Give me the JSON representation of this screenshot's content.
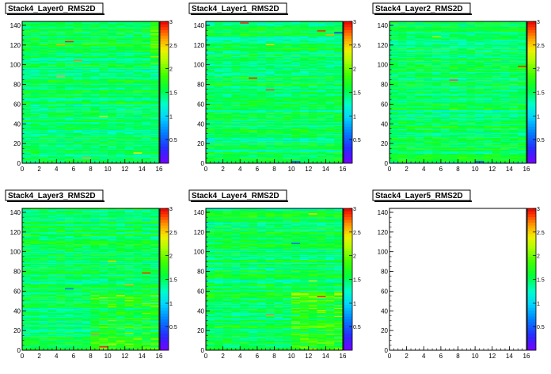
{
  "chart_data": [
    {
      "type": "heatmap",
      "title": "Stack4_Layer0_RMS2D",
      "x_ticks": [
        "0",
        "2",
        "4",
        "6",
        "8",
        "10",
        "12",
        "14",
        "16"
      ],
      "y_ticks": [
        "0",
        "20",
        "40",
        "60",
        "80",
        "100",
        "120",
        "140"
      ],
      "z_ticks": [
        "0.5",
        "1",
        "1.5",
        "2",
        "2.5",
        "3"
      ],
      "xlim": [
        0,
        16
      ],
      "ylim": [
        0,
        144
      ],
      "zlim": [
        0,
        3
      ],
      "typical_value": 1.5,
      "empty": false,
      "hot_cells": [
        {
          "x": 5,
          "y": 123,
          "z": 2.9
        },
        {
          "x": 4,
          "y": 120,
          "z": 2.6
        },
        {
          "x": 6,
          "y": 104,
          "z": 2.7
        },
        {
          "x": 4,
          "y": 88,
          "z": 2.6
        },
        {
          "x": 7,
          "y": 5,
          "z": 2.6
        },
        {
          "x": 13,
          "y": 10,
          "z": 2.4
        },
        {
          "x": 9,
          "y": 47,
          "z": 2.3
        }
      ]
    },
    {
      "type": "heatmap",
      "title": "Stack4_Layer1_RMS2D",
      "x_ticks": [
        "0",
        "2",
        "4",
        "6",
        "8",
        "10",
        "12",
        "14",
        "16"
      ],
      "y_ticks": [
        "0",
        "20",
        "40",
        "60",
        "80",
        "100",
        "120",
        "140"
      ],
      "z_ticks": [
        "0.5",
        "1",
        "1.5",
        "2",
        "2.5",
        "3"
      ],
      "xlim": [
        0,
        16
      ],
      "ylim": [
        0,
        144
      ],
      "zlim": [
        0,
        3
      ],
      "typical_value": 1.5,
      "empty": false,
      "hot_cells": [
        {
          "x": 4,
          "y": 142,
          "z": 2.9
        },
        {
          "x": 13,
          "y": 134,
          "z": 2.9
        },
        {
          "x": 15,
          "y": 132,
          "z": 0.3
        },
        {
          "x": 7,
          "y": 120,
          "z": 2.5
        },
        {
          "x": 5,
          "y": 86,
          "z": 2.9
        },
        {
          "x": 7,
          "y": 74,
          "z": 2.8
        },
        {
          "x": 10,
          "y": 1,
          "z": 0.3
        },
        {
          "x": 14,
          "y": 130,
          "z": 2.6
        }
      ]
    },
    {
      "type": "heatmap",
      "title": "Stack4_Layer2_RMS2D",
      "x_ticks": [
        "0",
        "2",
        "4",
        "6",
        "8",
        "10",
        "12",
        "14",
        "16"
      ],
      "y_ticks": [
        "0",
        "20",
        "40",
        "60",
        "80",
        "100",
        "120",
        "140"
      ],
      "z_ticks": [
        "0.5",
        "1",
        "1.5",
        "2",
        "2.5",
        "3"
      ],
      "xlim": [
        0,
        16
      ],
      "ylim": [
        0,
        144
      ],
      "zlim": [
        0,
        3
      ],
      "typical_value": 1.5,
      "empty": false,
      "hot_cells": [
        {
          "x": 7,
          "y": 84,
          "z": 2.8
        },
        {
          "x": 15,
          "y": 98,
          "z": 2.9
        },
        {
          "x": 10,
          "y": 1,
          "z": 0.3
        },
        {
          "x": 5,
          "y": 128,
          "z": 2.2
        }
      ]
    },
    {
      "type": "heatmap",
      "title": "Stack4_Layer3_RMS2D",
      "x_ticks": [
        "0",
        "2",
        "4",
        "6",
        "8",
        "10",
        "12",
        "14",
        "16"
      ],
      "y_ticks": [
        "0",
        "20",
        "40",
        "60",
        "80",
        "100",
        "120",
        "140"
      ],
      "z_ticks": [
        "0.5",
        "1",
        "1.5",
        "2",
        "2.5",
        "3"
      ],
      "xlim": [
        0,
        16
      ],
      "ylim": [
        0,
        144
      ],
      "zlim": [
        0,
        3
      ],
      "typical_value": 1.5,
      "empty": false,
      "hot_cells": [
        {
          "x": 14,
          "y": 78,
          "z": 2.9
        },
        {
          "x": 9,
          "y": 3,
          "z": 2.9
        },
        {
          "x": 8,
          "y": 16,
          "z": 2.7
        },
        {
          "x": 5,
          "y": 62,
          "z": 0.6
        },
        {
          "x": 12,
          "y": 66,
          "z": 2.6
        },
        {
          "x": 10,
          "y": 90,
          "z": 2.5
        },
        {
          "x": 11,
          "y": 55,
          "z": 2.3
        }
      ]
    },
    {
      "type": "heatmap",
      "title": "Stack4_Layer4_RMS2D",
      "x_ticks": [
        "0",
        "2",
        "4",
        "6",
        "8",
        "10",
        "12",
        "14",
        "16"
      ],
      "y_ticks": [
        "0",
        "20",
        "40",
        "60",
        "80",
        "100",
        "120",
        "140"
      ],
      "z_ticks": [
        "0.5",
        "1",
        "1.5",
        "2",
        "2.5",
        "3"
      ],
      "xlim": [
        0,
        16
      ],
      "ylim": [
        0,
        144
      ],
      "zlim": [
        0,
        3
      ],
      "typical_value": 1.5,
      "empty": false,
      "hot_cells": [
        {
          "x": 13,
          "y": 54,
          "z": 2.9
        },
        {
          "x": 7,
          "y": 36,
          "z": 2.7
        },
        {
          "x": 10,
          "y": 108,
          "z": 0.6
        },
        {
          "x": 12,
          "y": 138,
          "z": 2.5
        },
        {
          "x": 12,
          "y": 70,
          "z": 2.3
        },
        {
          "x": 13,
          "y": 40,
          "z": 2.2
        }
      ]
    },
    {
      "type": "heatmap",
      "title": "Stack4_Layer5_RMS2D",
      "x_ticks": [
        "0",
        "2",
        "4",
        "6",
        "8",
        "10",
        "12",
        "14",
        "16"
      ],
      "y_ticks": [
        "0",
        "20",
        "40",
        "60",
        "80",
        "100",
        "120",
        "140"
      ],
      "z_ticks": [
        "0.5",
        "1",
        "1.5",
        "2",
        "2.5",
        "3"
      ],
      "xlim": [
        0,
        16
      ],
      "ylim": [
        0,
        144
      ],
      "zlim": [
        0,
        3
      ],
      "typical_value": 1.5,
      "empty": true,
      "hot_cells": []
    }
  ],
  "colors": {
    "background": "#ffffff",
    "frame": "#000000",
    "title_box": "#ffffff"
  }
}
